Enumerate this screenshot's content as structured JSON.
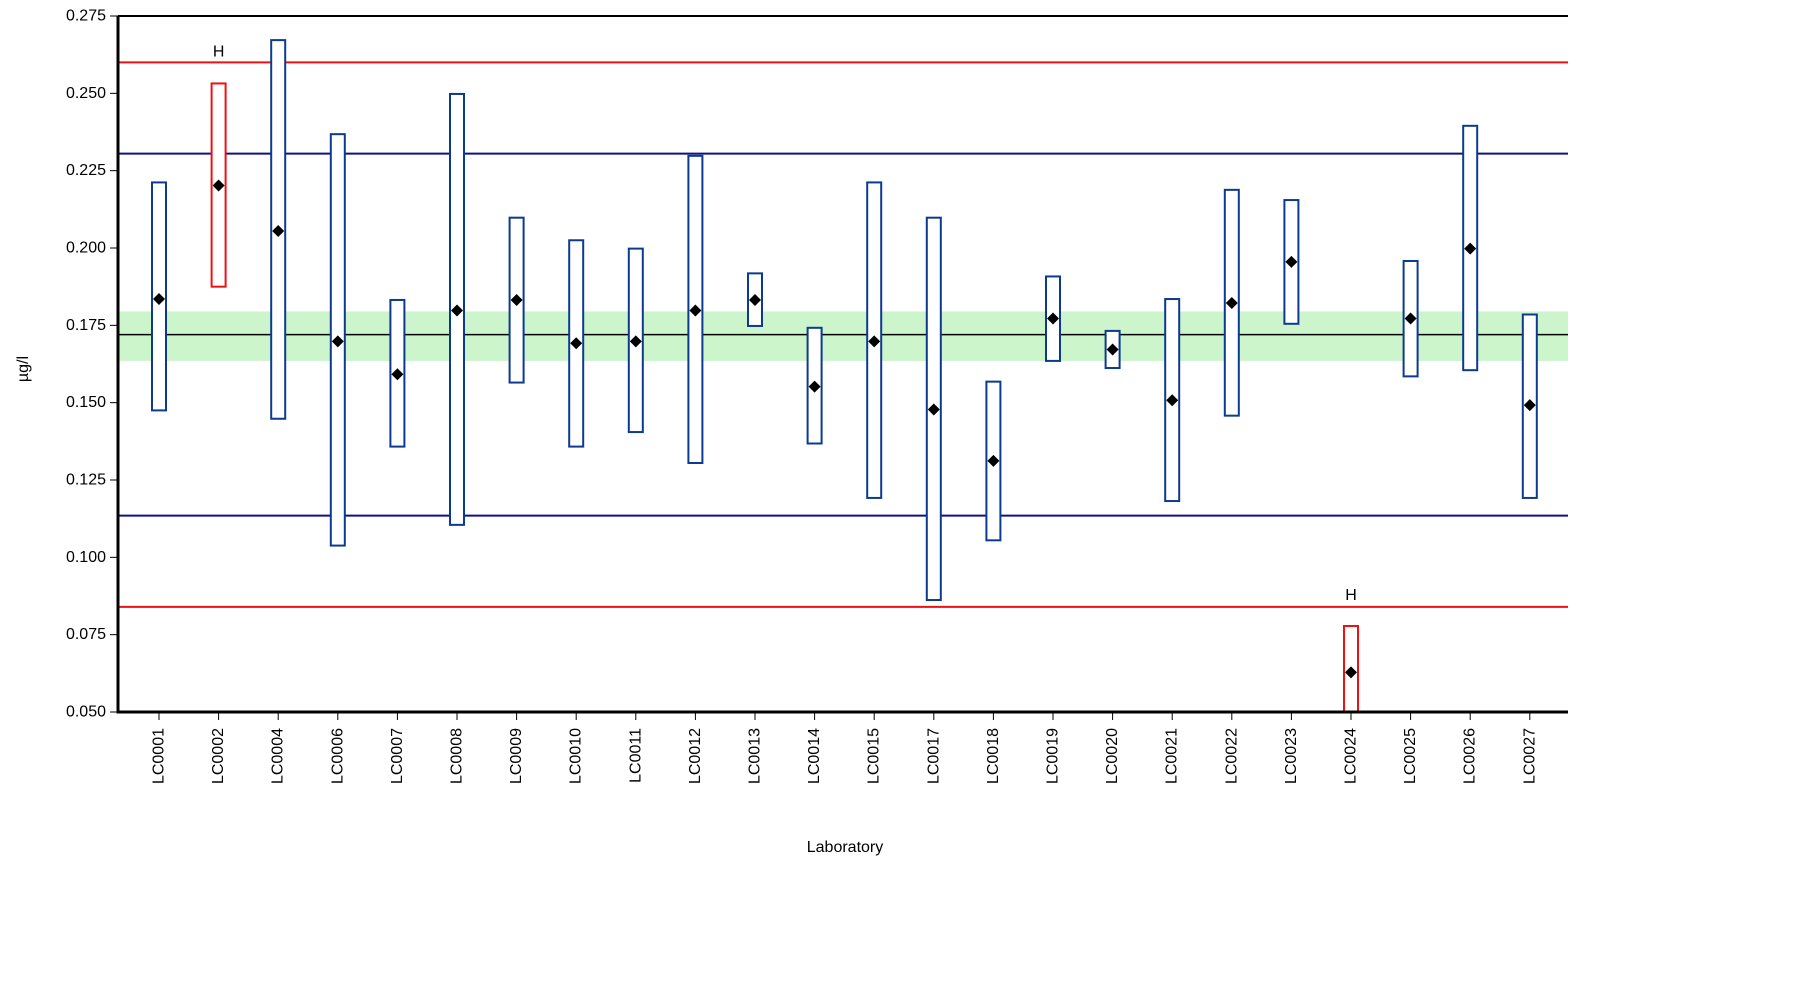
{
  "chart_data": {
    "type": "interval-dot",
    "xlabel": "Laboratory",
    "ylabel": "µg/l",
    "ylim": [
      0.05,
      0.275
    ],
    "yticks": [
      "0.050",
      "0.075",
      "0.100",
      "0.125",
      "0.150",
      "0.175",
      "0.200",
      "0.225",
      "0.250",
      "0.275"
    ],
    "reference_lines": {
      "assigned_value": 0.172,
      "assigned_band": [
        0.1635,
        0.1795
      ],
      "warning_limits": [
        0.1135,
        0.2305
      ],
      "action_limits": [
        0.084,
        0.26
      ]
    },
    "colors": {
      "normal": "#0b3a8f",
      "flagged": "#ee1111",
      "warning_line": "#101080",
      "action_line": "#ee1111",
      "band": "#ccf5cc",
      "marker": "#000000"
    },
    "labs": [
      {
        "id": "LC0001",
        "value": 0.1835,
        "low": 0.1475,
        "high": 0.2212,
        "flag": ""
      },
      {
        "id": "LC0002",
        "value": 0.2202,
        "low": 0.1875,
        "high": 0.2532,
        "flag": "H"
      },
      {
        "id": "LC0004",
        "value": 0.2055,
        "low": 0.1448,
        "high": 0.2672,
        "flag": ""
      },
      {
        "id": "LC0006",
        "value": 0.1698,
        "low": 0.1038,
        "high": 0.2368,
        "flag": ""
      },
      {
        "id": "LC0007",
        "value": 0.1592,
        "low": 0.1358,
        "high": 0.1832,
        "flag": ""
      },
      {
        "id": "LC0008",
        "value": 0.1798,
        "low": 0.1105,
        "high": 0.2498,
        "flag": ""
      },
      {
        "id": "LC0009",
        "value": 0.1832,
        "low": 0.1565,
        "high": 0.2098,
        "flag": ""
      },
      {
        "id": "LC0010",
        "value": 0.1692,
        "low": 0.1358,
        "high": 0.2025,
        "flag": ""
      },
      {
        "id": "LC0011",
        "value": 0.1698,
        "low": 0.1405,
        "high": 0.1998,
        "flag": ""
      },
      {
        "id": "LC0012",
        "value": 0.1798,
        "low": 0.1305,
        "high": 0.2298,
        "flag": ""
      },
      {
        "id": "LC0013",
        "value": 0.1832,
        "low": 0.1748,
        "high": 0.1918,
        "flag": ""
      },
      {
        "id": "LC0014",
        "value": 0.1552,
        "low": 0.1368,
        "high": 0.1742,
        "flag": ""
      },
      {
        "id": "LC0015",
        "value": 0.1698,
        "low": 0.1192,
        "high": 0.2212,
        "flag": ""
      },
      {
        "id": "LC0017",
        "value": 0.1478,
        "low": 0.0862,
        "high": 0.2098,
        "flag": ""
      },
      {
        "id": "LC0018",
        "value": 0.1312,
        "low": 0.1055,
        "high": 0.1568,
        "flag": ""
      },
      {
        "id": "LC0019",
        "value": 0.1772,
        "low": 0.1635,
        "high": 0.1908,
        "flag": ""
      },
      {
        "id": "LC0020",
        "value": 0.1672,
        "low": 0.1612,
        "high": 0.1732,
        "flag": ""
      },
      {
        "id": "LC0021",
        "value": 0.1508,
        "low": 0.1182,
        "high": 0.1835,
        "flag": ""
      },
      {
        "id": "LC0022",
        "value": 0.1822,
        "low": 0.1458,
        "high": 0.2188,
        "flag": ""
      },
      {
        "id": "LC0023",
        "value": 0.1955,
        "low": 0.1755,
        "high": 0.2155,
        "flag": ""
      },
      {
        "id": "LC0024",
        "value": 0.0628,
        "low": 0.05,
        "high": 0.0778,
        "flag": "H"
      },
      {
        "id": "LC0025",
        "value": 0.1772,
        "low": 0.1585,
        "high": 0.1958,
        "flag": ""
      },
      {
        "id": "LC0026",
        "value": 0.1998,
        "low": 0.1605,
        "high": 0.2395,
        "flag": ""
      },
      {
        "id": "LC0027",
        "value": 0.1492,
        "low": 0.1192,
        "high": 0.1785,
        "flag": ""
      }
    ]
  }
}
